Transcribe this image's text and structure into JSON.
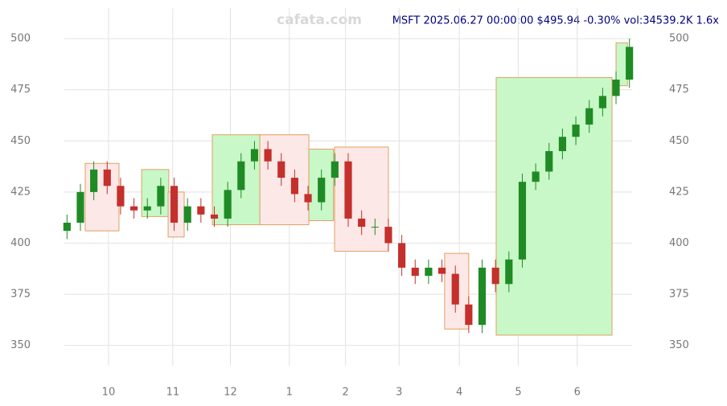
{
  "chart_data": {
    "type": "candlestick",
    "title": "MSFT 2025.06.27 00:00:00 $495.94 -0.30% vol:34539.2K 1.6x",
    "watermark": "cafata.com",
    "x": [
      0,
      1,
      2,
      3,
      4,
      5,
      6,
      7,
      8,
      9,
      10,
      11,
      12,
      13,
      14,
      15,
      16,
      17,
      18,
      19,
      20,
      21,
      22,
      23,
      24,
      25,
      26,
      27,
      28,
      29,
      30,
      31,
      32,
      33,
      34,
      35,
      36,
      37,
      38,
      39,
      40,
      41,
      42
    ],
    "open": [
      406,
      410,
      425,
      436,
      428,
      418,
      416,
      418,
      428,
      410,
      418,
      414,
      412,
      426,
      440,
      446,
      440,
      432,
      424,
      420,
      432,
      440,
      412,
      408,
      408,
      400,
      388,
      384,
      388,
      385,
      370,
      360,
      388,
      380,
      392,
      430,
      435,
      445,
      452,
      458,
      466,
      472,
      480
    ],
    "high": [
      414,
      429,
      440,
      440,
      432,
      422,
      422,
      432,
      432,
      422,
      422,
      418,
      430,
      444,
      450,
      450,
      444,
      436,
      428,
      436,
      444,
      444,
      416,
      412,
      412,
      404,
      392,
      392,
      392,
      389,
      374,
      392,
      392,
      396,
      434,
      439,
      449,
      456,
      462,
      470,
      476,
      484,
      500
    ],
    "low": [
      402,
      406,
      421,
      424,
      414,
      412,
      412,
      414,
      406,
      406,
      410,
      408,
      408,
      422,
      436,
      436,
      428,
      420,
      416,
      416,
      428,
      408,
      404,
      404,
      396,
      384,
      380,
      380,
      381,
      366,
      356,
      356,
      376,
      376,
      388,
      426,
      431,
      441,
      448,
      454,
      462,
      468,
      476
    ],
    "close": [
      410,
      425,
      436,
      428,
      418,
      416,
      418,
      428,
      410,
      418,
      414,
      412,
      426,
      440,
      446,
      440,
      432,
      424,
      420,
      432,
      440,
      412,
      408,
      408,
      400,
      388,
      384,
      388,
      385,
      370,
      360,
      388,
      380,
      392,
      430,
      435,
      445,
      452,
      458,
      466,
      472,
      480,
      496
    ],
    "up_color": "#1f8b24",
    "down_color": "#c4302b",
    "boxes": [
      {
        "x": [
          1.36,
          3.88
        ],
        "y": [
          406,
          439
        ],
        "color": "#fde8e8"
      },
      {
        "x": [
          5.57,
          7.6
        ],
        "y": [
          413,
          436
        ],
        "color": "#c8f8c8"
      },
      {
        "x": [
          7.55,
          8.75
        ],
        "y": [
          403,
          425
        ],
        "color": "#fde8e8"
      },
      {
        "x": [
          10.85,
          14.4
        ],
        "y": [
          409,
          453
        ],
        "color": "#c8f8c8"
      },
      {
        "x": [
          14.4,
          18.06
        ],
        "y": [
          409,
          453
        ],
        "color": "#fde8e8"
      },
      {
        "x": [
          18.06,
          19.9
        ],
        "y": [
          411,
          446
        ],
        "color": "#c8f8c8"
      },
      {
        "x": [
          19.98,
          24
        ],
        "y": [
          396,
          447
        ],
        "color": "#fde8e8"
      },
      {
        "x": [
          28.2,
          30
        ],
        "y": [
          358,
          395
        ],
        "color": "#fde8e8"
      },
      {
        "x": [
          32.05,
          40.7
        ],
        "y": [
          355,
          481
        ],
        "color": "#c8f8c8"
      },
      {
        "x": [
          41,
          41.85
        ],
        "y": [
          477,
          498
        ],
        "color": "#c8f8c8"
      }
    ],
    "xlim": [
      -0.2,
      42.2
    ],
    "xticks": [
      {
        "value": 3.1,
        "label": "10"
      },
      {
        "value": 7.9,
        "label": "11"
      },
      {
        "value": 12.2,
        "label": "12"
      },
      {
        "value": 16.6,
        "label": "1"
      },
      {
        "value": 20.8,
        "label": "2"
      },
      {
        "value": 24.8,
        "label": "3"
      },
      {
        "value": 29.3,
        "label": "4"
      },
      {
        "value": 33.7,
        "label": "5"
      },
      {
        "value": 38.1,
        "label": "6"
      }
    ],
    "ylim": [
      340,
      515
    ],
    "yticks": [
      350,
      375,
      400,
      425,
      450,
      475,
      500
    ],
    "grid": true
  }
}
